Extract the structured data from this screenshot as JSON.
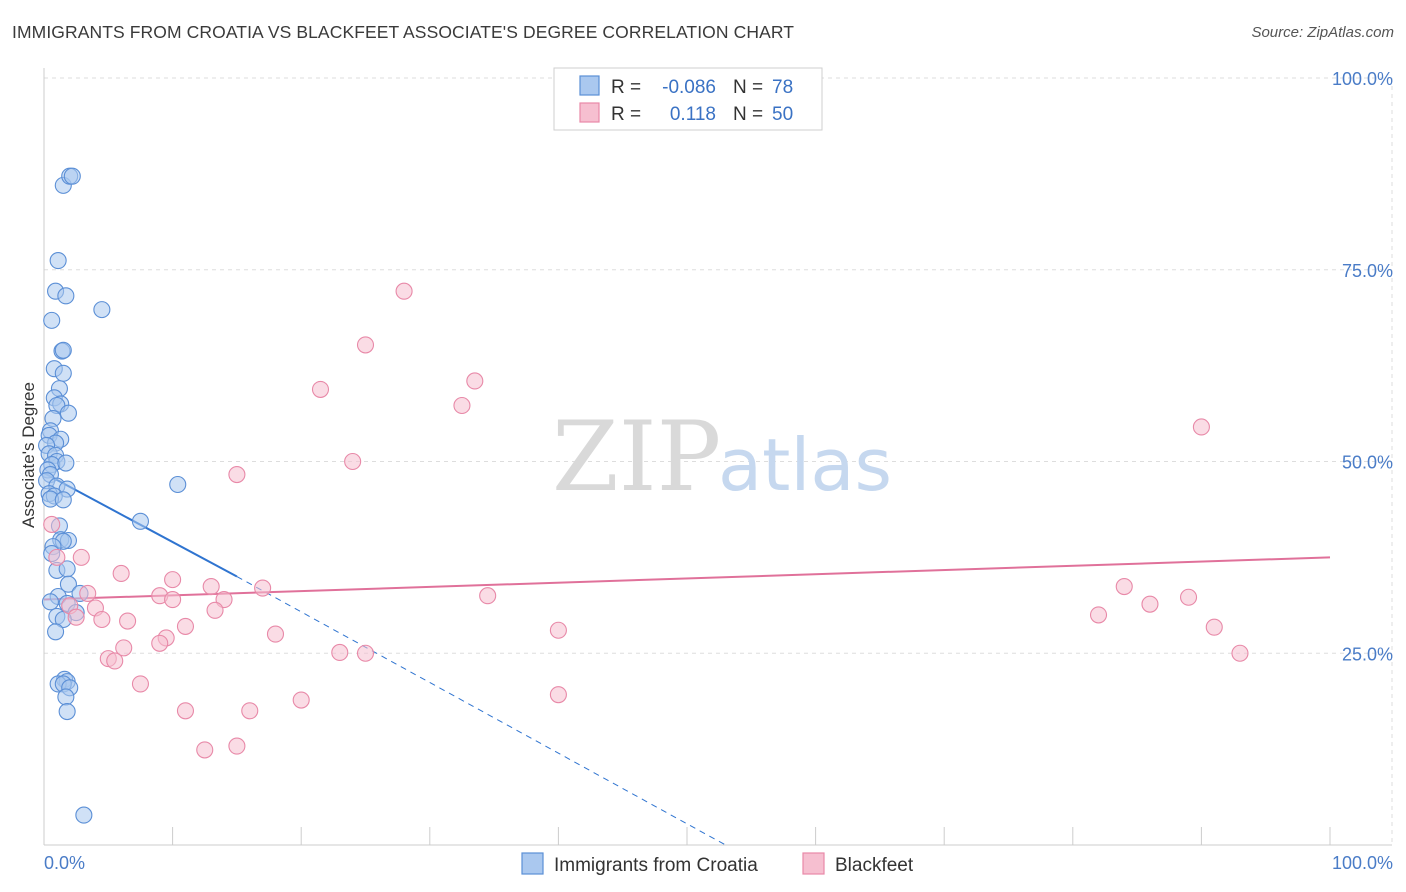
{
  "title": "IMMIGRANTS FROM CROATIA VS BLACKFEET ASSOCIATE'S DEGREE CORRELATION CHART",
  "source": "Source: ZipAtlas.com",
  "watermark": {
    "zip": "ZIP",
    "atlas": "atlas"
  },
  "legend": {
    "r_label": "R =",
    "n_label": "N =",
    "entries": [
      {
        "r": "-0.086",
        "n": "78"
      },
      {
        "r": "0.118",
        "n": "50"
      }
    ]
  },
  "colors": {
    "blue_fill": "#aac8ef",
    "blue_stroke": "#5b8fd6",
    "blue_line": "#2f74d0",
    "pink_fill": "#f6bfd0",
    "pink_stroke": "#e889a8",
    "pink_line": "#e0719a",
    "grid": "#dddddd",
    "axis_text": "#4a7cc7"
  },
  "chart_data": {
    "type": "scatter",
    "title": "IMMIGRANTS FROM CROATIA VS BLACKFEET ASSOCIATE'S DEGREE CORRELATION CHART",
    "xlabel": "",
    "ylabel": "Associate's Degree",
    "xlim": [
      0,
      100
    ],
    "ylim": [
      0,
      100
    ],
    "x_tick_labels": [
      "0.0%",
      "100.0%"
    ],
    "y_tick_values": [
      25,
      50,
      75,
      100
    ],
    "y_tick_labels": [
      "25.0%",
      "50.0%",
      "75.0%",
      "100.0%"
    ],
    "grid": true,
    "legend_position": "bottom",
    "series": [
      {
        "name": "Immigrants from Croatia",
        "color": "#5b8fd6",
        "trend": {
          "x0": 0,
          "y0": 48.5,
          "x1": 15,
          "y1": 35.0,
          "dash_to_x": 53,
          "dash_to_y": 0
        },
        "points": [
          [
            1.5,
            86.0
          ],
          [
            2.0,
            87.2
          ],
          [
            2.2,
            87.2
          ],
          [
            1.1,
            76.2
          ],
          [
            0.9,
            72.2
          ],
          [
            1.7,
            71.6
          ],
          [
            4.5,
            69.8
          ],
          [
            0.6,
            68.4
          ],
          [
            1.4,
            64.4
          ],
          [
            1.5,
            64.5
          ],
          [
            0.8,
            62.1
          ],
          [
            1.5,
            61.5
          ],
          [
            1.2,
            59.5
          ],
          [
            0.8,
            58.3
          ],
          [
            1.3,
            57.5
          ],
          [
            1.0,
            57.3
          ],
          [
            1.9,
            56.3
          ],
          [
            0.7,
            55.6
          ],
          [
            0.5,
            54.0
          ],
          [
            0.4,
            53.4
          ],
          [
            1.3,
            52.9
          ],
          [
            0.9,
            52.4
          ],
          [
            0.2,
            52.1
          ],
          [
            0.4,
            51.0
          ],
          [
            0.9,
            50.8
          ],
          [
            1.0,
            50.0
          ],
          [
            0.6,
            49.6
          ],
          [
            1.7,
            49.8
          ],
          [
            0.3,
            48.9
          ],
          [
            0.5,
            48.3
          ],
          [
            0.2,
            47.5
          ],
          [
            1.0,
            46.8
          ],
          [
            1.8,
            46.4
          ],
          [
            0.4,
            45.8
          ],
          [
            0.8,
            45.5
          ],
          [
            0.5,
            45.1
          ],
          [
            1.5,
            45.0
          ],
          [
            10.4,
            47.0
          ],
          [
            7.5,
            42.2
          ],
          [
            1.2,
            41.6
          ],
          [
            1.3,
            39.8
          ],
          [
            1.9,
            39.7
          ],
          [
            1.5,
            39.6
          ],
          [
            0.7,
            38.9
          ],
          [
            0.6,
            38.0
          ],
          [
            1.0,
            35.8
          ],
          [
            1.8,
            36.0
          ],
          [
            1.9,
            34.0
          ],
          [
            2.8,
            32.8
          ],
          [
            1.1,
            32.4
          ],
          [
            0.5,
            31.7
          ],
          [
            1.8,
            31.5
          ],
          [
            2.5,
            30.3
          ],
          [
            1.0,
            29.8
          ],
          [
            1.5,
            29.4
          ],
          [
            0.9,
            27.8
          ],
          [
            1.6,
            21.6
          ],
          [
            1.8,
            21.3
          ],
          [
            1.1,
            21.0
          ],
          [
            1.5,
            21.0
          ],
          [
            2.0,
            20.5
          ],
          [
            1.7,
            19.3
          ],
          [
            1.8,
            17.4
          ],
          [
            3.1,
            3.9
          ]
        ]
      },
      {
        "name": "Blackfeet",
        "color": "#e889a8",
        "trend": {
          "x0": 0,
          "y0": 32.0,
          "x1": 100,
          "y1": 37.5
        },
        "points": [
          [
            28.0,
            72.2
          ],
          [
            25.0,
            65.2
          ],
          [
            33.5,
            60.5
          ],
          [
            21.5,
            59.4
          ],
          [
            32.5,
            57.3
          ],
          [
            90.0,
            54.5
          ],
          [
            24.0,
            50.0
          ],
          [
            15.0,
            48.3
          ],
          [
            0.6,
            41.8
          ],
          [
            1.0,
            37.5
          ],
          [
            2.9,
            37.5
          ],
          [
            6.0,
            35.4
          ],
          [
            10.0,
            34.6
          ],
          [
            13.0,
            33.7
          ],
          [
            17.0,
            33.5
          ],
          [
            3.4,
            32.8
          ],
          [
            9.0,
            32.5
          ],
          [
            34.5,
            32.5
          ],
          [
            10.0,
            32.0
          ],
          [
            14.0,
            32.0
          ],
          [
            2.0,
            31.2
          ],
          [
            4.0,
            30.9
          ],
          [
            13.3,
            30.6
          ],
          [
            2.5,
            29.7
          ],
          [
            4.5,
            29.4
          ],
          [
            6.5,
            29.2
          ],
          [
            11.0,
            28.5
          ],
          [
            40.0,
            28.0
          ],
          [
            18.0,
            27.5
          ],
          [
            9.5,
            27.0
          ],
          [
            9.0,
            26.3
          ],
          [
            6.2,
            25.7
          ],
          [
            23.0,
            25.1
          ],
          [
            25.0,
            25.0
          ],
          [
            5.0,
            24.3
          ],
          [
            5.5,
            24.0
          ],
          [
            7.5,
            21.0
          ],
          [
            40.0,
            19.6
          ],
          [
            20.0,
            18.9
          ],
          [
            11.0,
            17.5
          ],
          [
            16.0,
            17.5
          ],
          [
            15.0,
            12.9
          ],
          [
            12.5,
            12.4
          ],
          [
            84.0,
            33.7
          ],
          [
            86.0,
            31.4
          ],
          [
            89.0,
            32.3
          ],
          [
            82.0,
            30.0
          ],
          [
            91.0,
            28.4
          ],
          [
            93.0,
            25.0
          ]
        ]
      }
    ]
  }
}
